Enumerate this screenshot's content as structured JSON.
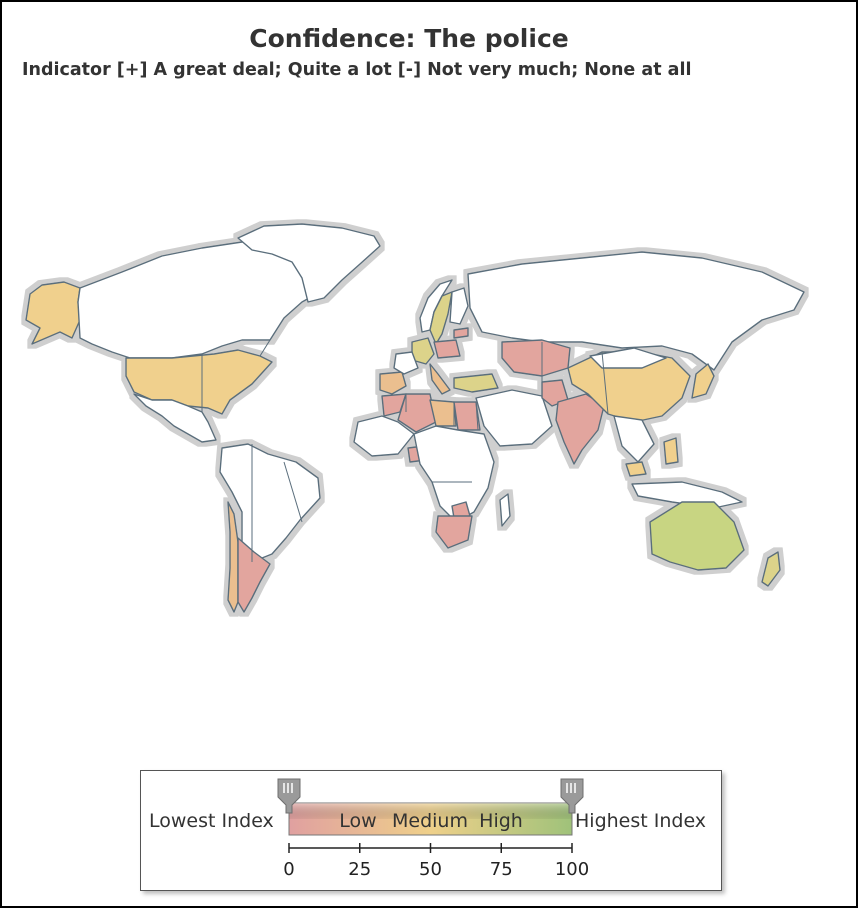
{
  "title": "Confidence: The police",
  "subtitle": "Indicator [+] A great deal; Quite a lot [-] Not very much; None at all",
  "legend": {
    "lowest_label": "Lowest Index",
    "highest_label": "Highest Index",
    "band_labels": [
      "Low",
      "Medium",
      "High"
    ],
    "ticks": [
      "0",
      "25",
      "50",
      "75",
      "100"
    ],
    "range_min": 0,
    "range_max": 100,
    "handle_min_value": 0,
    "handle_max_value": 100,
    "colors": {
      "low": "#e0a0a0",
      "medium": "#efd08a",
      "high": "#9fc27a"
    }
  },
  "map": {
    "colors": {
      "no_data": "#ffffff",
      "border": "#5a6e7c",
      "halo": "#d4d4d4",
      "low": "#e2a59e",
      "medium_low": "#ebbf8f",
      "medium": "#f0d08d",
      "medium_high": "#dcd38a",
      "high": "#c8d582"
    },
    "countries": [
      {
        "name": "Alaska (USA)",
        "level": "medium"
      },
      {
        "name": "USA",
        "level": "medium"
      },
      {
        "name": "Canada",
        "level": "no_data"
      },
      {
        "name": "Greenland",
        "level": "no_data"
      },
      {
        "name": "Mexico",
        "level": "no_data"
      },
      {
        "name": "Chile",
        "level": "medium_low"
      },
      {
        "name": "Argentina",
        "level": "low"
      },
      {
        "name": "Sweden",
        "level": "medium_high"
      },
      {
        "name": "Norway",
        "level": "no_data"
      },
      {
        "name": "Finland",
        "level": "no_data"
      },
      {
        "name": "Estonia",
        "level": "low"
      },
      {
        "name": "Germany",
        "level": "medium_high"
      },
      {
        "name": "Poland",
        "level": "low"
      },
      {
        "name": "Spain",
        "level": "medium_low"
      },
      {
        "name": "Italy",
        "level": "medium_low"
      },
      {
        "name": "Turkey",
        "level": "medium_high"
      },
      {
        "name": "Kazakhstan",
        "level": "low"
      },
      {
        "name": "Russia",
        "level": "no_data"
      },
      {
        "name": "China",
        "level": "medium"
      },
      {
        "name": "India",
        "level": "low"
      },
      {
        "name": "Pakistan",
        "level": "low"
      },
      {
        "name": "Japan",
        "level": "medium"
      },
      {
        "name": "Morocco",
        "level": "low"
      },
      {
        "name": "Algeria",
        "level": "low"
      },
      {
        "name": "Libya",
        "level": "medium_low"
      },
      {
        "name": "Egypt",
        "level": "low"
      },
      {
        "name": "Nigeria",
        "level": "low"
      },
      {
        "name": "Zimbabwe",
        "level": "low"
      },
      {
        "name": "South Africa",
        "level": "low"
      },
      {
        "name": "Australia",
        "level": "high"
      },
      {
        "name": "New Zealand",
        "level": "medium_high"
      },
      {
        "name": "Philippines",
        "level": "medium"
      },
      {
        "name": "Malaysia",
        "level": "medium"
      }
    ]
  }
}
